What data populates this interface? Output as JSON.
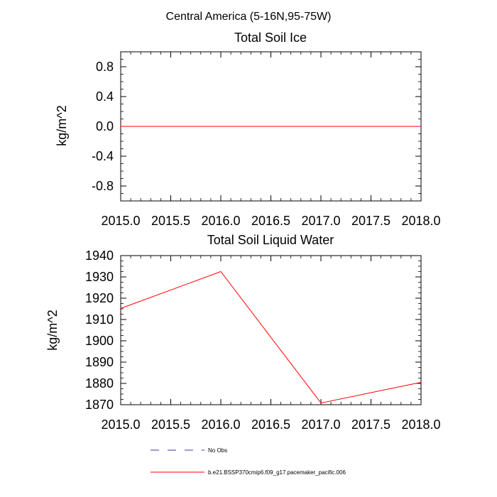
{
  "figure": {
    "title": "Central America (5-16N,95-75W)"
  },
  "chart_data": [
    {
      "type": "line",
      "title": "Total Soil Ice",
      "ylabel": "kg/m^2",
      "xlabel": "",
      "xlim": [
        2015.0,
        2018.0
      ],
      "ylim": [
        -1.0,
        1.0
      ],
      "xticks": [
        "2015.0",
        "2015.5",
        "2016.0",
        "2016.5",
        "2017.0",
        "2017.5",
        "2018.0"
      ],
      "yticks": [
        "-0.8",
        "-0.4",
        "0.0",
        "0.4",
        "0.8"
      ],
      "series": [
        {
          "name": "b.e21.BSSP370cmip6.f09_g17.pacemaker_pacific.006",
          "color": "#ff0000",
          "x": [
            2015.0,
            2016.0,
            2017.0,
            2018.0
          ],
          "y": [
            0.0,
            0.0,
            0.0,
            0.0
          ]
        }
      ]
    },
    {
      "type": "line",
      "title": "Total Soil Liquid Water",
      "ylabel": "kg/m^2",
      "xlabel": "",
      "xlim": [
        2015.0,
        2018.0
      ],
      "ylim": [
        1870,
        1940
      ],
      "xticks": [
        "2015.0",
        "2015.5",
        "2016.0",
        "2016.5",
        "2017.0",
        "2017.5",
        "2018.0"
      ],
      "yticks": [
        "1870",
        "1880",
        "1890",
        "1900",
        "1910",
        "1920",
        "1930",
        "1940"
      ],
      "series": [
        {
          "name": "b.e21.BSSP370cmip6.f09_g17.pacemaker_pacific.006",
          "color": "#ff0000",
          "x": [
            2015.0,
            2016.0,
            2017.0,
            2018.0
          ],
          "y": [
            1915.2,
            1932.5,
            1870.8,
            1880.5
          ]
        }
      ]
    }
  ],
  "legend": {
    "placement": "bottom-center",
    "entries": [
      {
        "label": "No Obs",
        "color": "#3a3aa0",
        "style": "dashed"
      },
      {
        "label": "b.e21.BSSP370cmip6.f09_g17.pacemaker_pacific.006",
        "color": "#ff0000",
        "style": "solid"
      }
    ]
  }
}
